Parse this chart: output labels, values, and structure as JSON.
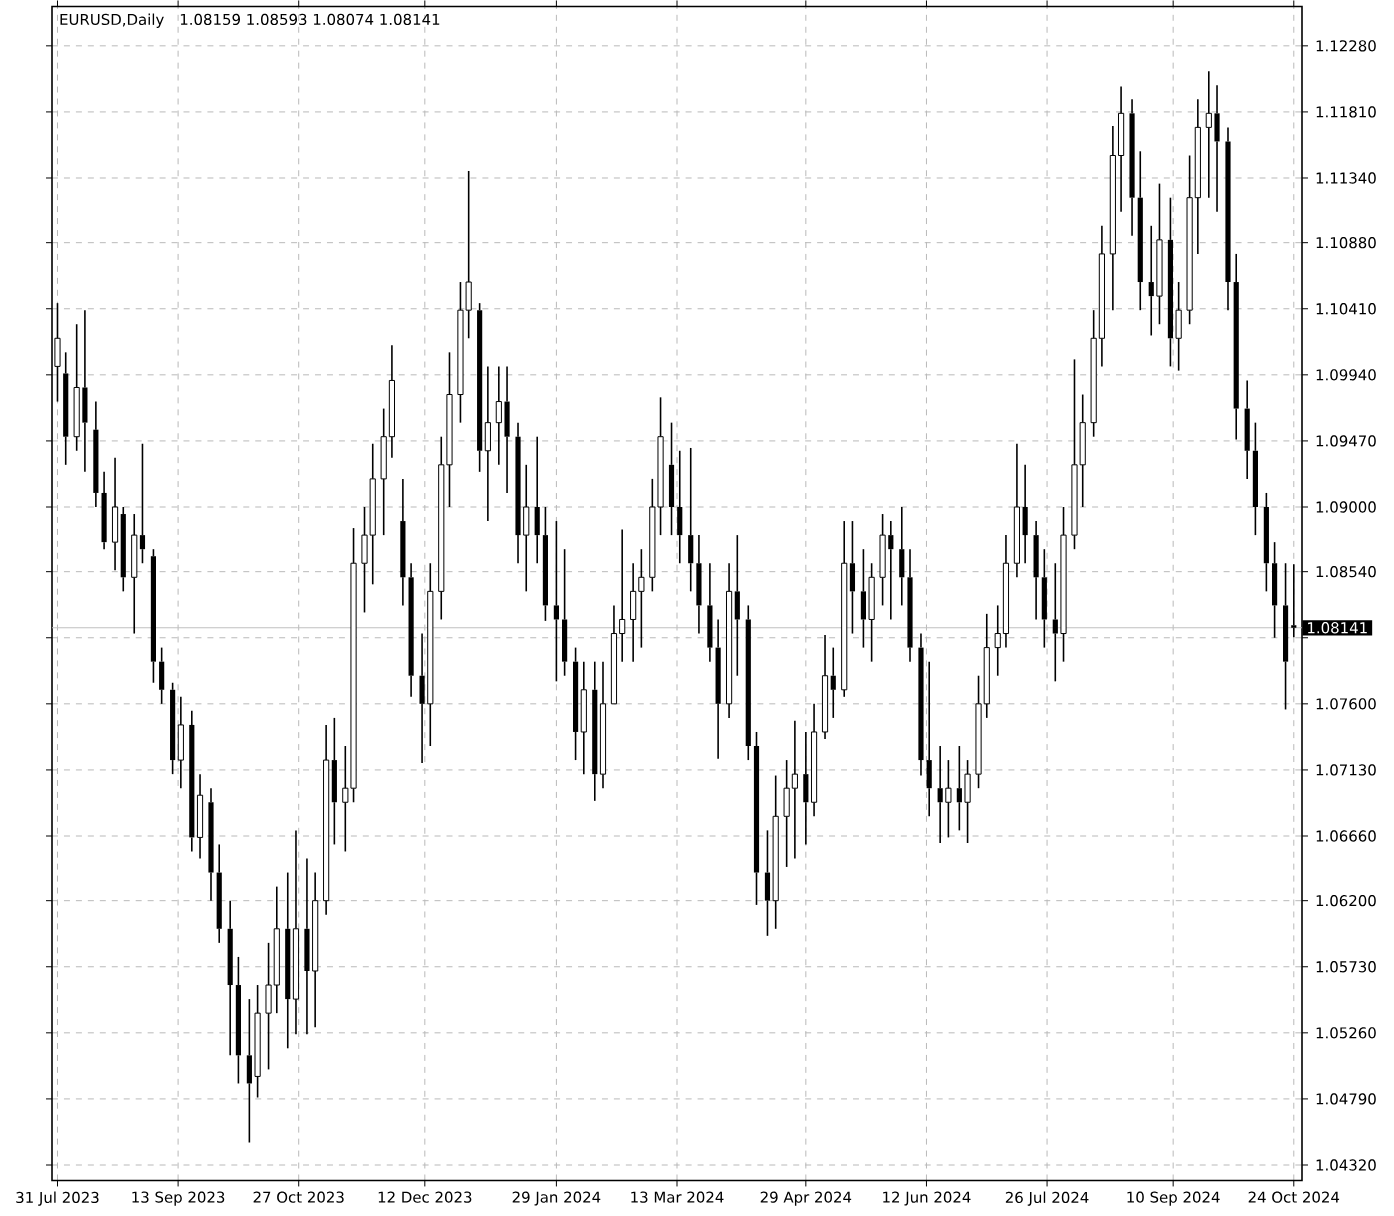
{
  "chart_data": {
    "type": "candlestick",
    "title": "EURUSD,Daily",
    "subtitle": "1.08159 1.08593 1.08074 1.08141",
    "color": "#000000",
    "grid": true,
    "xlim": [
      "2023-07-29",
      "2024-10-27"
    ],
    "xticks": [
      {
        "value": "2023-07-31",
        "label": "31 Jul 2023"
      },
      {
        "value": "2023-09-13",
        "label": "13 Sep 2023"
      },
      {
        "value": "2023-10-27",
        "label": "27 Oct 2023"
      },
      {
        "value": "2023-12-12",
        "label": "12 Dec 2023"
      },
      {
        "value": "2024-01-29",
        "label": "29 Jan 2024"
      },
      {
        "value": "2024-03-13",
        "label": "13 Mar 2024"
      },
      {
        "value": "2024-04-29",
        "label": "29 Apr 2024"
      },
      {
        "value": "2024-06-12",
        "label": "12 Jun 2024"
      },
      {
        "value": "2024-07-26",
        "label": "26 Jul 2024"
      },
      {
        "value": "2024-09-10",
        "label": "10 Sep 2024"
      },
      {
        "value": "2024-10-24",
        "label": "24 Oct 2024"
      }
    ],
    "ylim": [
      1.0421,
      1.1256
    ],
    "yticks": [
      {
        "value": 1.0432,
        "label": "1.04320"
      },
      {
        "value": 1.0479,
        "label": "1.04790"
      },
      {
        "value": 1.0526,
        "label": "1.05260"
      },
      {
        "value": 1.0573,
        "label": "1.05730"
      },
      {
        "value": 1.062,
        "label": "1.06200"
      },
      {
        "value": 1.0666,
        "label": "1.06660"
      },
      {
        "value": 1.0713,
        "label": "1.07130"
      },
      {
        "value": 1.076,
        "label": "1.07600"
      },
      {
        "value": 1.0807,
        "label": null
      },
      {
        "value": 1.0854,
        "label": "1.08540"
      },
      {
        "value": 1.09,
        "label": "1.09000"
      },
      {
        "value": 1.0947,
        "label": "1.09470"
      },
      {
        "value": 1.0994,
        "label": "1.09940"
      },
      {
        "value": 1.1041,
        "label": "1.10410"
      },
      {
        "value": 1.1088,
        "label": "1.10880"
      },
      {
        "value": 1.1134,
        "label": "1.11340"
      },
      {
        "value": 1.1181,
        "label": "1.11810"
      },
      {
        "value": 1.1228,
        "label": "1.12280"
      }
    ],
    "ref_lines": [
      {
        "axis": "y",
        "value": 1.08141,
        "label": "1.08141",
        "color": "#c0c0c0"
      }
    ],
    "x": [
      "2023-07-31",
      "2023-08-03",
      "2023-08-07",
      "2023-08-10",
      "2023-08-14",
      "2023-08-17",
      "2023-08-21",
      "2023-08-24",
      "2023-08-28",
      "2023-08-31",
      "2023-09-04",
      "2023-09-07",
      "2023-09-11",
      "2023-09-14",
      "2023-09-18",
      "2023-09-21",
      "2023-09-25",
      "2023-09-28",
      "2023-10-02",
      "2023-10-05",
      "2023-10-09",
      "2023-10-12",
      "2023-10-16",
      "2023-10-19",
      "2023-10-23",
      "2023-10-26",
      "2023-10-30",
      "2023-11-02",
      "2023-11-06",
      "2023-11-09",
      "2023-11-13",
      "2023-11-16",
      "2023-11-20",
      "2023-11-23",
      "2023-11-27",
      "2023-11-30",
      "2023-12-04",
      "2023-12-07",
      "2023-12-11",
      "2023-12-14",
      "2023-12-18",
      "2023-12-21",
      "2023-12-25",
      "2023-12-28",
      "2024-01-01",
      "2024-01-04",
      "2024-01-08",
      "2024-01-11",
      "2024-01-15",
      "2024-01-18",
      "2024-01-22",
      "2024-01-25",
      "2024-01-29",
      "2024-02-01",
      "2024-02-05",
      "2024-02-08",
      "2024-02-12",
      "2024-02-15",
      "2024-02-19",
      "2024-02-22",
      "2024-02-26",
      "2024-02-29",
      "2024-03-04",
      "2024-03-07",
      "2024-03-11",
      "2024-03-14",
      "2024-03-18",
      "2024-03-21",
      "2024-03-25",
      "2024-03-28",
      "2024-04-01",
      "2024-04-04",
      "2024-04-08",
      "2024-04-11",
      "2024-04-15",
      "2024-04-18",
      "2024-04-22",
      "2024-04-25",
      "2024-04-29",
      "2024-05-02",
      "2024-05-06",
      "2024-05-09",
      "2024-05-13",
      "2024-05-16",
      "2024-05-20",
      "2024-05-23",
      "2024-05-27",
      "2024-05-30",
      "2024-06-03",
      "2024-06-06",
      "2024-06-10",
      "2024-06-13",
      "2024-06-17",
      "2024-06-20",
      "2024-06-24",
      "2024-06-27",
      "2024-07-01",
      "2024-07-04",
      "2024-07-08",
      "2024-07-11",
      "2024-07-15",
      "2024-07-18",
      "2024-07-22",
      "2024-07-25",
      "2024-07-29",
      "2024-08-01",
      "2024-08-05",
      "2024-08-08",
      "2024-08-12",
      "2024-08-15",
      "2024-08-19",
      "2024-08-22",
      "2024-08-26",
      "2024-08-29",
      "2024-09-02",
      "2024-09-05",
      "2024-09-09",
      "2024-09-12",
      "2024-09-16",
      "2024-09-19",
      "2024-09-23",
      "2024-09-26",
      "2024-09-30",
      "2024-10-03",
      "2024-10-07",
      "2024-10-10",
      "2024-10-14",
      "2024-10-17",
      "2024-10-21",
      "2024-10-24"
    ],
    "ohlc": [
      [
        1.1,
        1.1045,
        1.0975,
        1.102
      ],
      [
        1.0995,
        1.101,
        1.093,
        1.095
      ],
      [
        1.095,
        1.103,
        1.094,
        1.0985
      ],
      [
        1.0985,
        1.104,
        1.0925,
        1.096
      ],
      [
        1.0955,
        1.0975,
        1.09,
        1.091
      ],
      [
        1.091,
        1.0925,
        1.087,
        1.0875
      ],
      [
        1.0875,
        1.0935,
        1.0855,
        1.09
      ],
      [
        1.0895,
        1.09,
        1.084,
        1.085
      ],
      [
        1.085,
        1.0895,
        1.081,
        1.088
      ],
      [
        1.088,
        1.0945,
        1.086,
        1.087
      ],
      [
        1.0865,
        1.087,
        1.0775,
        1.079
      ],
      [
        1.079,
        1.08,
        1.076,
        1.077
      ],
      [
        1.077,
        1.0775,
        1.071,
        1.072
      ],
      [
        1.072,
        1.0765,
        1.07,
        1.0745
      ],
      [
        1.0745,
        1.0755,
        1.0655,
        1.0665
      ],
      [
        1.0665,
        1.071,
        1.065,
        1.0695
      ],
      [
        1.069,
        1.07,
        1.062,
        1.064
      ],
      [
        1.064,
        1.066,
        1.059,
        1.06
      ],
      [
        1.06,
        1.062,
        1.051,
        1.056
      ],
      [
        1.056,
        1.058,
        1.049,
        1.051
      ],
      [
        1.051,
        1.055,
        1.0448,
        1.049
      ],
      [
        1.0495,
        1.056,
        1.048,
        1.054
      ],
      [
        1.054,
        1.059,
        1.05,
        1.056
      ],
      [
        1.056,
        1.063,
        1.054,
        1.06
      ],
      [
        1.06,
        1.064,
        1.0515,
        1.055
      ],
      [
        1.055,
        1.067,
        1.0525,
        1.06
      ],
      [
        1.06,
        1.065,
        1.0525,
        1.057
      ],
      [
        1.057,
        1.064,
        1.053,
        1.062
      ],
      [
        1.062,
        1.0745,
        1.061,
        1.072
      ],
      [
        1.072,
        1.075,
        1.066,
        1.069
      ],
      [
        1.069,
        1.073,
        1.0655,
        1.07
      ],
      [
        1.07,
        1.0885,
        1.069,
        1.086
      ],
      [
        1.086,
        1.09,
        1.0825,
        1.088
      ],
      [
        1.088,
        1.0945,
        1.0845,
        1.092
      ],
      [
        1.092,
        1.097,
        1.088,
        1.095
      ],
      [
        1.095,
        1.1015,
        1.0935,
        1.099
      ],
      [
        1.089,
        1.092,
        1.083,
        1.085
      ],
      [
        1.085,
        1.086,
        1.0765,
        1.078
      ],
      [
        1.078,
        1.081,
        1.0718,
        1.076
      ],
      [
        1.076,
        1.086,
        1.073,
        1.084
      ],
      [
        1.084,
        1.095,
        1.082,
        1.093
      ],
      [
        1.093,
        1.101,
        1.09,
        1.098
      ],
      [
        1.098,
        1.106,
        1.096,
        1.104
      ],
      [
        1.104,
        1.1139,
        1.102,
        1.106
      ],
      [
        1.104,
        1.1045,
        1.0925,
        1.094
      ],
      [
        1.094,
        1.1,
        1.089,
        1.096
      ],
      [
        1.096,
        1.1,
        1.093,
        1.0975
      ],
      [
        1.0975,
        1.1,
        1.091,
        1.095
      ],
      [
        1.095,
        1.096,
        1.086,
        1.088
      ],
      [
        1.088,
        1.093,
        1.084,
        1.09
      ],
      [
        1.09,
        1.095,
        1.086,
        1.088
      ],
      [
        1.088,
        1.09,
        1.0819,
        1.083
      ],
      [
        1.083,
        1.089,
        1.0776,
        1.082
      ],
      [
        1.082,
        1.087,
        1.078,
        1.079
      ],
      [
        1.079,
        1.08,
        1.072,
        1.074
      ],
      [
        1.074,
        1.079,
        1.071,
        1.077
      ],
      [
        1.077,
        1.079,
        1.0691,
        1.071
      ],
      [
        1.071,
        1.079,
        1.07,
        1.076
      ],
      [
        1.076,
        1.083,
        1.076,
        1.081
      ],
      [
        1.081,
        1.0884,
        1.079,
        1.082
      ],
      [
        1.082,
        1.086,
        1.079,
        1.084
      ],
      [
        1.084,
        1.087,
        1.08,
        1.085
      ],
      [
        1.085,
        1.092,
        1.084,
        1.09
      ],
      [
        1.09,
        1.0978,
        1.088,
        1.095
      ],
      [
        1.093,
        1.096,
        1.088,
        1.09
      ],
      [
        1.09,
        1.094,
        1.086,
        1.088
      ],
      [
        1.088,
        1.0942,
        1.084,
        1.086
      ],
      [
        1.086,
        1.088,
        1.081,
        1.083
      ],
      [
        1.083,
        1.086,
        1.079,
        1.08
      ],
      [
        1.08,
        1.082,
        1.0721,
        1.076
      ],
      [
        1.076,
        1.086,
        1.075,
        1.084
      ],
      [
        1.084,
        1.088,
        1.078,
        1.082
      ],
      [
        1.082,
        1.083,
        1.072,
        1.073
      ],
      [
        1.073,
        1.074,
        1.0617,
        1.064
      ],
      [
        1.064,
        1.067,
        1.0595,
        1.062
      ],
      [
        1.062,
        1.0709,
        1.06,
        1.068
      ],
      [
        1.068,
        1.072,
        1.0644,
        1.07
      ],
      [
        1.07,
        1.0748,
        1.065,
        1.071
      ],
      [
        1.071,
        1.074,
        1.066,
        1.069
      ],
      [
        1.069,
        1.076,
        1.068,
        1.074
      ],
      [
        1.074,
        1.0809,
        1.0735,
        1.078
      ],
      [
        1.078,
        1.08,
        1.075,
        1.077
      ],
      [
        1.077,
        1.089,
        1.0765,
        1.086
      ],
      [
        1.086,
        1.089,
        1.081,
        1.084
      ],
      [
        1.084,
        1.087,
        1.08,
        1.082
      ],
      [
        1.082,
        1.086,
        1.079,
        1.085
      ],
      [
        1.085,
        1.0895,
        1.083,
        1.088
      ],
      [
        1.088,
        1.089,
        1.082,
        1.087
      ],
      [
        1.087,
        1.09,
        1.083,
        1.085
      ],
      [
        1.085,
        1.087,
        1.079,
        1.08
      ],
      [
        1.08,
        1.081,
        1.0709,
        1.072
      ],
      [
        1.072,
        1.079,
        1.068,
        1.07
      ],
      [
        1.07,
        1.073,
        1.0661,
        1.069
      ],
      [
        1.069,
        1.072,
        1.0665,
        1.07
      ],
      [
        1.07,
        1.073,
        1.067,
        1.069
      ],
      [
        1.069,
        1.072,
        1.0661,
        1.071
      ],
      [
        1.071,
        1.078,
        1.07,
        1.076
      ],
      [
        1.076,
        1.0824,
        1.075,
        1.08
      ],
      [
        1.08,
        1.083,
        1.078,
        1.081
      ],
      [
        1.081,
        1.088,
        1.08,
        1.086
      ],
      [
        1.086,
        1.0945,
        1.085,
        1.09
      ],
      [
        1.09,
        1.093,
        1.086,
        1.088
      ],
      [
        1.088,
        1.089,
        1.082,
        1.085
      ],
      [
        1.085,
        1.087,
        1.08,
        1.082
      ],
      [
        1.082,
        1.086,
        1.0776,
        1.081
      ],
      [
        1.081,
        1.09,
        1.079,
        1.088
      ],
      [
        1.088,
        1.1005,
        1.087,
        1.093
      ],
      [
        1.093,
        1.098,
        1.09,
        1.096
      ],
      [
        1.096,
        1.104,
        1.095,
        1.102
      ],
      [
        1.102,
        1.11,
        1.1,
        1.108
      ],
      [
        1.108,
        1.1171,
        1.104,
        1.115
      ],
      [
        1.115,
        1.1199,
        1.111,
        1.118
      ],
      [
        1.118,
        1.119,
        1.1093,
        1.112
      ],
      [
        1.112,
        1.1153,
        1.104,
        1.106
      ],
      [
        1.106,
        1.11,
        1.1022,
        1.105
      ],
      [
        1.105,
        1.113,
        1.103,
        1.109
      ],
      [
        1.109,
        1.112,
        1.1,
        1.102
      ],
      [
        1.102,
        1.106,
        1.0997,
        1.104
      ],
      [
        1.104,
        1.115,
        1.103,
        1.112
      ],
      [
        1.112,
        1.119,
        1.108,
        1.117
      ],
      [
        1.117,
        1.121,
        1.112,
        1.118
      ],
      [
        1.118,
        1.12,
        1.111,
        1.116
      ],
      [
        1.116,
        1.117,
        1.104,
        1.106
      ],
      [
        1.106,
        1.108,
        1.0948,
        1.097
      ],
      [
        1.097,
        1.099,
        1.092,
        1.094
      ],
      [
        1.094,
        1.096,
        1.088,
        1.09
      ],
      [
        1.09,
        1.091,
        1.084,
        1.086
      ],
      [
        1.086,
        1.0875,
        1.0807,
        1.083
      ],
      [
        1.083,
        1.086,
        1.0756,
        1.079
      ],
      [
        1.08159,
        1.08593,
        1.08074,
        1.08141
      ]
    ]
  }
}
